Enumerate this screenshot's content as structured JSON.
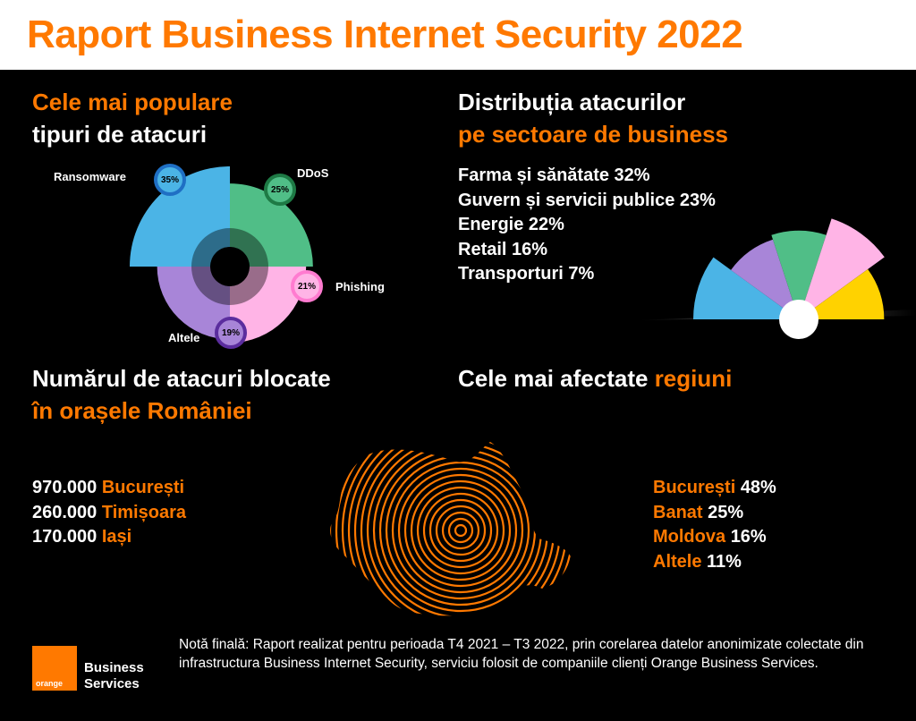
{
  "header": {
    "title": "Raport Business Internet Security 2022"
  },
  "attacks": {
    "heading_line1": "Cele mai populare",
    "heading_line2": "tipuri de atacuri",
    "chart_data": {
      "type": "pie",
      "variant": "polar-area",
      "categories": [
        "Ransomware",
        "DDoS",
        "Phishing",
        "Altele"
      ],
      "values": [
        35,
        25,
        21,
        19
      ],
      "labels": [
        "35%",
        "25%",
        "21%",
        "19%"
      ],
      "colors": [
        "#4bb4e6",
        "#50be87",
        "#ffb4e6",
        "#a885d8"
      ]
    }
  },
  "sectors": {
    "heading_line1": "Distribuția atacurilor",
    "heading_line2": "pe sectoare de business",
    "items": [
      {
        "label": "Farma și sănătate",
        "value": "32%"
      },
      {
        "label": "Guvern și servicii publice",
        "value": "23%"
      },
      {
        "label": "Energie",
        "value": "22%"
      },
      {
        "label": "Retail",
        "value": "16%"
      },
      {
        "label": "Transporturi",
        "value": "7%"
      }
    ],
    "chart_data": {
      "type": "pie",
      "variant": "half-polar-area",
      "categories": [
        "Farma și sănătate",
        "Guvern și servicii publice",
        "Energie",
        "Retail",
        "Transporturi"
      ],
      "values": [
        32,
        23,
        22,
        16,
        7
      ],
      "colors": [
        "#4bb4e6",
        "#a885d8",
        "#50be87",
        "#ffb4e6",
        "#ffd200"
      ]
    }
  },
  "cities": {
    "heading_line1": "Numărul de atacuri blocate",
    "heading_line2": "în orașele României",
    "items": [
      {
        "value": "970.000",
        "city": "București"
      },
      {
        "value": "260.000",
        "city": "Timișoara"
      },
      {
        "value": "170.000",
        "city": "Iași"
      }
    ]
  },
  "regions": {
    "heading_prefix": "Cele mai afectate",
    "heading_highlight": "regiuni",
    "items": [
      {
        "name": "București",
        "value": "48%"
      },
      {
        "name": "Banat",
        "value": "25%"
      },
      {
        "name": "Moldova",
        "value": "16%"
      },
      {
        "name": "Altele",
        "value": "11%"
      }
    ]
  },
  "footer": {
    "note": "Notă finală: Raport realizat pentru perioada T4 2021 – T3 2022, prin corelarea datelor anonimizate colectate din infrastructura Business Internet Security, serviciu folosit de companiile clienți Orange Business Services.",
    "logo_text": "orange",
    "brand_line1": "Business",
    "brand_line2": "Services"
  },
  "colors": {
    "accent": "#ff7900",
    "background": "#000000",
    "header_bg": "#ffffff"
  }
}
